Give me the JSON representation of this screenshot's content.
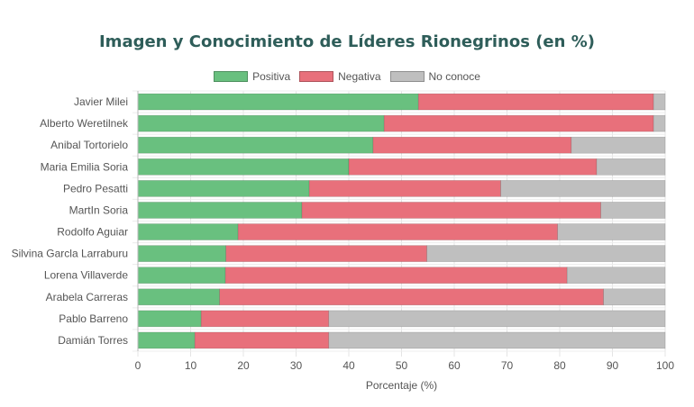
{
  "chart_data": {
    "type": "bar",
    "orientation": "horizontal",
    "stacked": true,
    "title": "Imagen y Conocimiento de Líderes Rionegrinos (en %)",
    "xlabel": "Porcentaje (%)",
    "ylabel": "",
    "xlim": [
      0,
      100
    ],
    "xticks": [
      "0",
      "10",
      "20",
      "30",
      "40",
      "50",
      "60",
      "70",
      "80",
      "90",
      "100"
    ],
    "grid": true,
    "legend_position": "top-center",
    "categories": [
      "Javier Milei",
      "Alberto Weretilnek",
      "Anibal Tortorielo",
      "Maria Emilia Soria",
      "Pedro Pesatti",
      "MartIn Soria",
      "Rodolfo Aguiar",
      "Silvina Garcla Larraburu",
      "Lorena Villaverde",
      "Arabela Carreras",
      "Pablo Barreno",
      "Damián Torres"
    ],
    "series": [
      {
        "name": "Positiva",
        "color": "#69c07f",
        "values": [
          53.2,
          46.7,
          44.6,
          40.0,
          32.5,
          31.1,
          19.0,
          16.7,
          16.6,
          15.5,
          12.0,
          10.8
        ]
      },
      {
        "name": "Negativa",
        "color": "#e8707b",
        "values": [
          44.6,
          51.1,
          37.6,
          47.0,
          36.3,
          56.7,
          60.6,
          38.1,
          64.8,
          72.8,
          24.2,
          25.4
        ]
      },
      {
        "name": "No conoce",
        "color": "#bfbfbf",
        "values": [
          2.2,
          2.2,
          17.8,
          13.0,
          31.2,
          12.2,
          20.4,
          45.2,
          18.6,
          11.7,
          63.8,
          63.8
        ]
      }
    ]
  }
}
